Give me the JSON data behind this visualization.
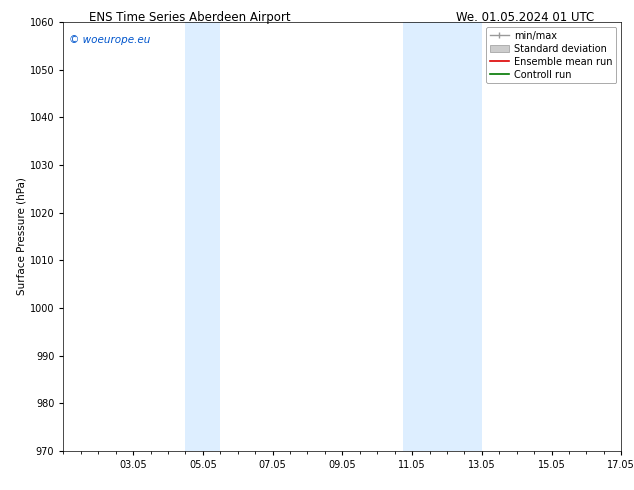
{
  "title_left": "ENS Time Series Aberdeen Airport",
  "title_right": "We. 01.05.2024 01 UTC",
  "ylabel": "Surface Pressure (hPa)",
  "xlim": [
    1.05,
    17.05
  ],
  "ylim": [
    970,
    1060
  ],
  "yticks": [
    970,
    980,
    990,
    1000,
    1010,
    1020,
    1030,
    1040,
    1050,
    1060
  ],
  "xtick_labels": [
    "03.05",
    "05.05",
    "07.05",
    "09.05",
    "11.05",
    "13.05",
    "15.05",
    "17.05"
  ],
  "xtick_positions": [
    3.05,
    5.05,
    7.05,
    9.05,
    11.05,
    13.05,
    15.05,
    17.05
  ],
  "shaded_bands": [
    {
      "xmin": 4.55,
      "xmax": 5.55
    },
    {
      "xmin": 10.8,
      "xmax": 13.05
    }
  ],
  "band_color": "#ddeeff",
  "watermark": "© woeurope.eu",
  "watermark_color": "#0055cc",
  "legend_labels": [
    "min/max",
    "Standard deviation",
    "Ensemble mean run",
    "Controll run"
  ],
  "minmax_color": "#999999",
  "std_color": "#cccccc",
  "ensemble_color": "#dd0000",
  "control_color": "#007700",
  "background_color": "#ffffff",
  "title_fontsize": 8.5,
  "ylabel_fontsize": 7.5,
  "tick_fontsize": 7,
  "legend_fontsize": 7,
  "watermark_fontsize": 7.5,
  "figsize": [
    6.34,
    4.9
  ],
  "dpi": 100
}
